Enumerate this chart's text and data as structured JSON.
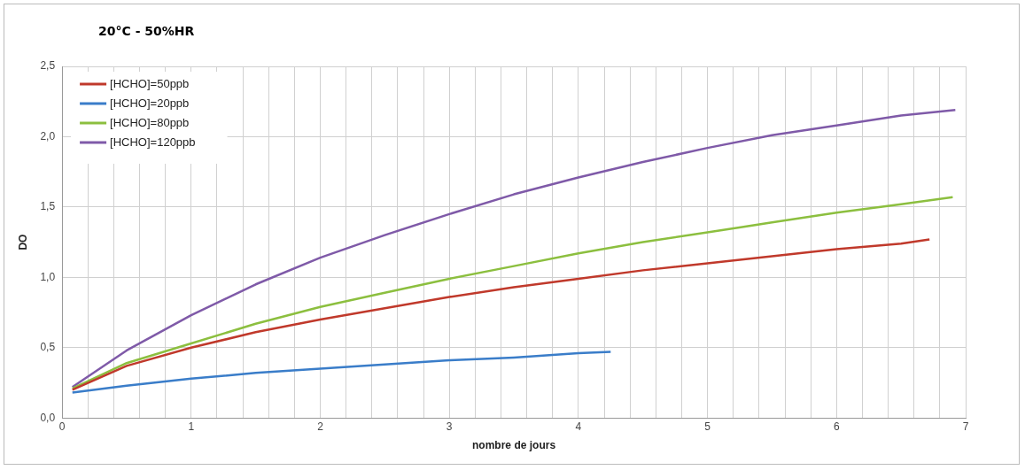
{
  "chart_data": {
    "type": "line",
    "title": "20°C - 50%HR",
    "xlabel": "nombre de jours",
    "ylabel": "DO",
    "xlim": [
      0,
      7
    ],
    "xticks": [
      0,
      {
        "value": 0.2,
        "label": null
      },
      {
        "value": 0.4,
        "label": null
      },
      {
        "value": 0.6,
        "label": null
      },
      {
        "value": 0.8,
        "label": null
      },
      1,
      {
        "value": 1.2,
        "label": null
      },
      {
        "value": 1.4,
        "label": null
      },
      {
        "value": 1.6,
        "label": null
      },
      {
        "value": 1.8,
        "label": null
      },
      2,
      {
        "value": 2.2,
        "label": null
      },
      {
        "value": 2.4,
        "label": null
      },
      {
        "value": 2.6,
        "label": null
      },
      {
        "value": 2.8,
        "label": null
      },
      3,
      {
        "value": 3.2,
        "label": null
      },
      {
        "value": 3.4,
        "label": null
      },
      {
        "value": 3.6,
        "label": null
      },
      {
        "value": 3.8,
        "label": null
      },
      4,
      {
        "value": 4.2,
        "label": null
      },
      {
        "value": 4.4,
        "label": null
      },
      {
        "value": 4.6,
        "label": null
      },
      {
        "value": 4.8,
        "label": null
      },
      5,
      {
        "value": 5.2,
        "label": null
      },
      {
        "value": 5.4,
        "label": null
      },
      {
        "value": 5.6,
        "label": null
      },
      {
        "value": 5.8,
        "label": null
      },
      6,
      {
        "value": 6.2,
        "label": null
      },
      {
        "value": 6.4,
        "label": null
      },
      {
        "value": 6.6,
        "label": null
      },
      {
        "value": 6.8,
        "label": null
      },
      7
    ],
    "ylim": [
      0,
      2.5
    ],
    "yticks": [
      {
        "value": 0,
        "label": "0,0"
      },
      {
        "value": 0.5,
        "label": "0,5"
      },
      {
        "value": 1,
        "label": "1,0"
      },
      {
        "value": 1.5,
        "label": "1,5"
      },
      {
        "value": 2,
        "label": "2,0"
      },
      {
        "value": 2.5,
        "label": "2,5"
      }
    ],
    "grid": true,
    "legend": "top left",
    "marker": "none",
    "line_style": "solid",
    "series": [
      {
        "name": "[HCHO]=50ppb",
        "color": "#c0392b",
        "x": [
          0.08,
          0.5,
          1,
          1.5,
          2,
          2.5,
          3,
          3.5,
          4,
          4.5,
          5,
          5.5,
          6,
          6.5,
          6.72
        ],
        "values": [
          0.2,
          0.37,
          0.5,
          0.61,
          0.7,
          0.78,
          0.86,
          0.93,
          0.99,
          1.05,
          1.1,
          1.15,
          1.2,
          1.24,
          1.27
        ]
      },
      {
        "name": "[HCHO]=20ppb",
        "color": "#3a7dc9",
        "x": [
          0.08,
          0.5,
          1,
          1.5,
          2,
          2.5,
          3,
          3.5,
          4,
          4.25
        ],
        "values": [
          0.18,
          0.23,
          0.28,
          0.32,
          0.35,
          0.38,
          0.41,
          0.43,
          0.46,
          0.47
        ]
      },
      {
        "name": "[HCHO]=80ppb",
        "color": "#8cbf3f",
        "x": [
          0.08,
          0.5,
          1,
          1.5,
          2,
          2.5,
          3,
          3.5,
          4,
          4.5,
          5,
          5.5,
          6,
          6.5,
          6.9
        ],
        "values": [
          0.21,
          0.39,
          0.53,
          0.67,
          0.79,
          0.89,
          0.99,
          1.08,
          1.17,
          1.25,
          1.32,
          1.39,
          1.46,
          1.52,
          1.57
        ]
      },
      {
        "name": "[HCHO]=120ppb",
        "color": "#7f5aa8",
        "x": [
          0.08,
          0.5,
          1,
          1.5,
          2,
          2.5,
          3,
          3.5,
          4,
          4.5,
          5,
          5.5,
          6,
          6.5,
          6.92
        ],
        "values": [
          0.22,
          0.48,
          0.73,
          0.95,
          1.14,
          1.3,
          1.45,
          1.59,
          1.71,
          1.82,
          1.92,
          2.01,
          2.08,
          2.15,
          2.19
        ]
      }
    ]
  }
}
